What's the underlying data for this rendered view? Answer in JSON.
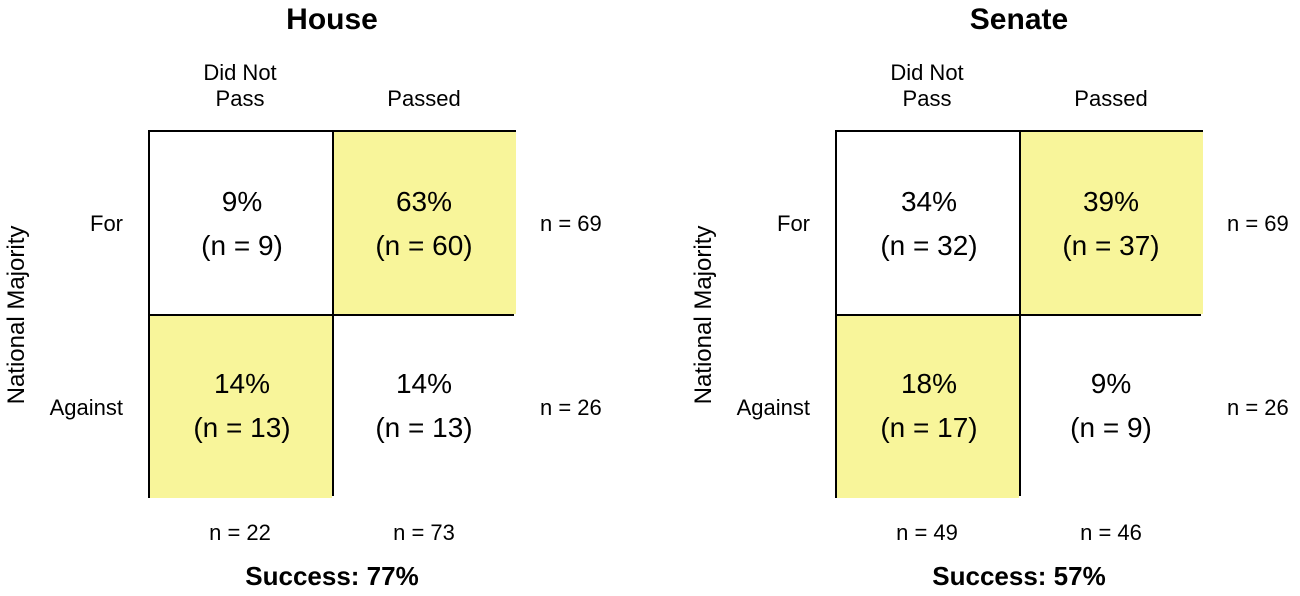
{
  "chart_data": [
    {
      "type": "table",
      "title": "House",
      "ylabel": "National Majority",
      "columns": [
        "Did Not\nPass",
        "Passed"
      ],
      "rows": [
        "For",
        "Against"
      ],
      "cells": [
        [
          {
            "pct": "9%",
            "n": "(n = 9)"
          },
          {
            "pct": "63%",
            "n": "(n = 60)"
          }
        ],
        [
          {
            "pct": "14%",
            "n": "(n = 13)"
          },
          {
            "pct": "14%",
            "n": "(n = 13)"
          }
        ]
      ],
      "highlighted": [
        [
          false,
          true
        ],
        [
          true,
          false
        ]
      ],
      "row_totals": [
        "n = 69",
        "n = 26"
      ],
      "col_totals": [
        "n = 22",
        "n = 73"
      ],
      "success": "Success: 77%",
      "highlight_color": "#f8f59a"
    },
    {
      "type": "table",
      "title": "Senate",
      "ylabel": "National Majority",
      "columns": [
        "Did Not\nPass",
        "Passed"
      ],
      "rows": [
        "For",
        "Against"
      ],
      "cells": [
        [
          {
            "pct": "34%",
            "n": "(n = 32)"
          },
          {
            "pct": "39%",
            "n": "(n = 37)"
          }
        ],
        [
          {
            "pct": "18%",
            "n": "(n = 17)"
          },
          {
            "pct": "9%",
            "n": "(n = 9)"
          }
        ]
      ],
      "highlighted": [
        [
          false,
          true
        ],
        [
          true,
          false
        ]
      ],
      "row_totals": [
        "n = 69",
        "n = 26"
      ],
      "col_totals": [
        "n = 49",
        "n = 46"
      ],
      "success": "Success: 57%",
      "highlight_color": "#f8f59a"
    }
  ]
}
